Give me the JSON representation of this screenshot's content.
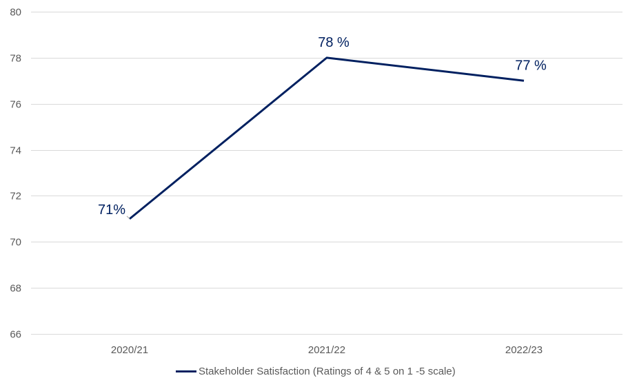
{
  "chart_data": {
    "type": "line",
    "title": "",
    "xlabel": "",
    "ylabel": "",
    "categories": [
      "2020/21",
      "2021/22",
      "2022/23"
    ],
    "series": [
      {
        "name": "Stakeholder Satisfaction (Ratings of 4 & 5 on 1 -5 scale)",
        "values": [
          71,
          78,
          77
        ],
        "data_labels": [
          "71%",
          "78 %",
          "77 %"
        ],
        "color": "#002060"
      }
    ],
    "ylim": [
      66,
      80
    ],
    "yticks": [
      66,
      68,
      70,
      72,
      74,
      76,
      78,
      80
    ],
    "grid": true,
    "legend_position": "bottom"
  },
  "legend": {
    "label": "Stakeholder Satisfaction (Ratings of 4 & 5 on 1 -5 scale)"
  }
}
